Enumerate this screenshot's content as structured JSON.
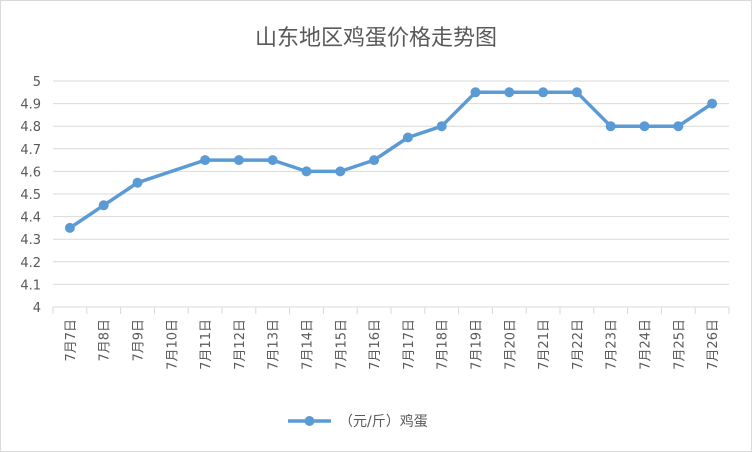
{
  "chart_data": {
    "type": "line",
    "title": "山东地区鸡蛋价格走势图",
    "categories": [
      "7月7日",
      "7月8日",
      "7月9日",
      "7月10日",
      "7月11日",
      "7月12日",
      "7月13日",
      "7月14日",
      "7月15日",
      "7月16日",
      "7月17日",
      "7月18日",
      "7月19日",
      "7月20日",
      "7月21日",
      "7月22日",
      "7月23日",
      "7月24日",
      "7月25日",
      "7月26日"
    ],
    "series": [
      {
        "name": "（元/斤）鸡蛋",
        "values": [
          4.35,
          4.45,
          4.55,
          null,
          4.65,
          4.65,
          4.65,
          4.6,
          4.6,
          4.65,
          4.75,
          4.8,
          4.95,
          4.95,
          4.95,
          4.95,
          4.8,
          4.8,
          4.8,
          4.9
        ],
        "color": "#5b9bd5"
      }
    ],
    "ylim": [
      4,
      5
    ],
    "yticks": [
      "4",
      "4.1",
      "4.2",
      "4.3",
      "4.4",
      "4.5",
      "4.6",
      "4.7",
      "4.8",
      "4.9",
      "5"
    ],
    "grid": true,
    "legend": "bottom",
    "xlabel": "",
    "ylabel": ""
  },
  "colors": {
    "line": "#5b9bd5",
    "grid": "#d9d9d9",
    "text": "#595959"
  }
}
